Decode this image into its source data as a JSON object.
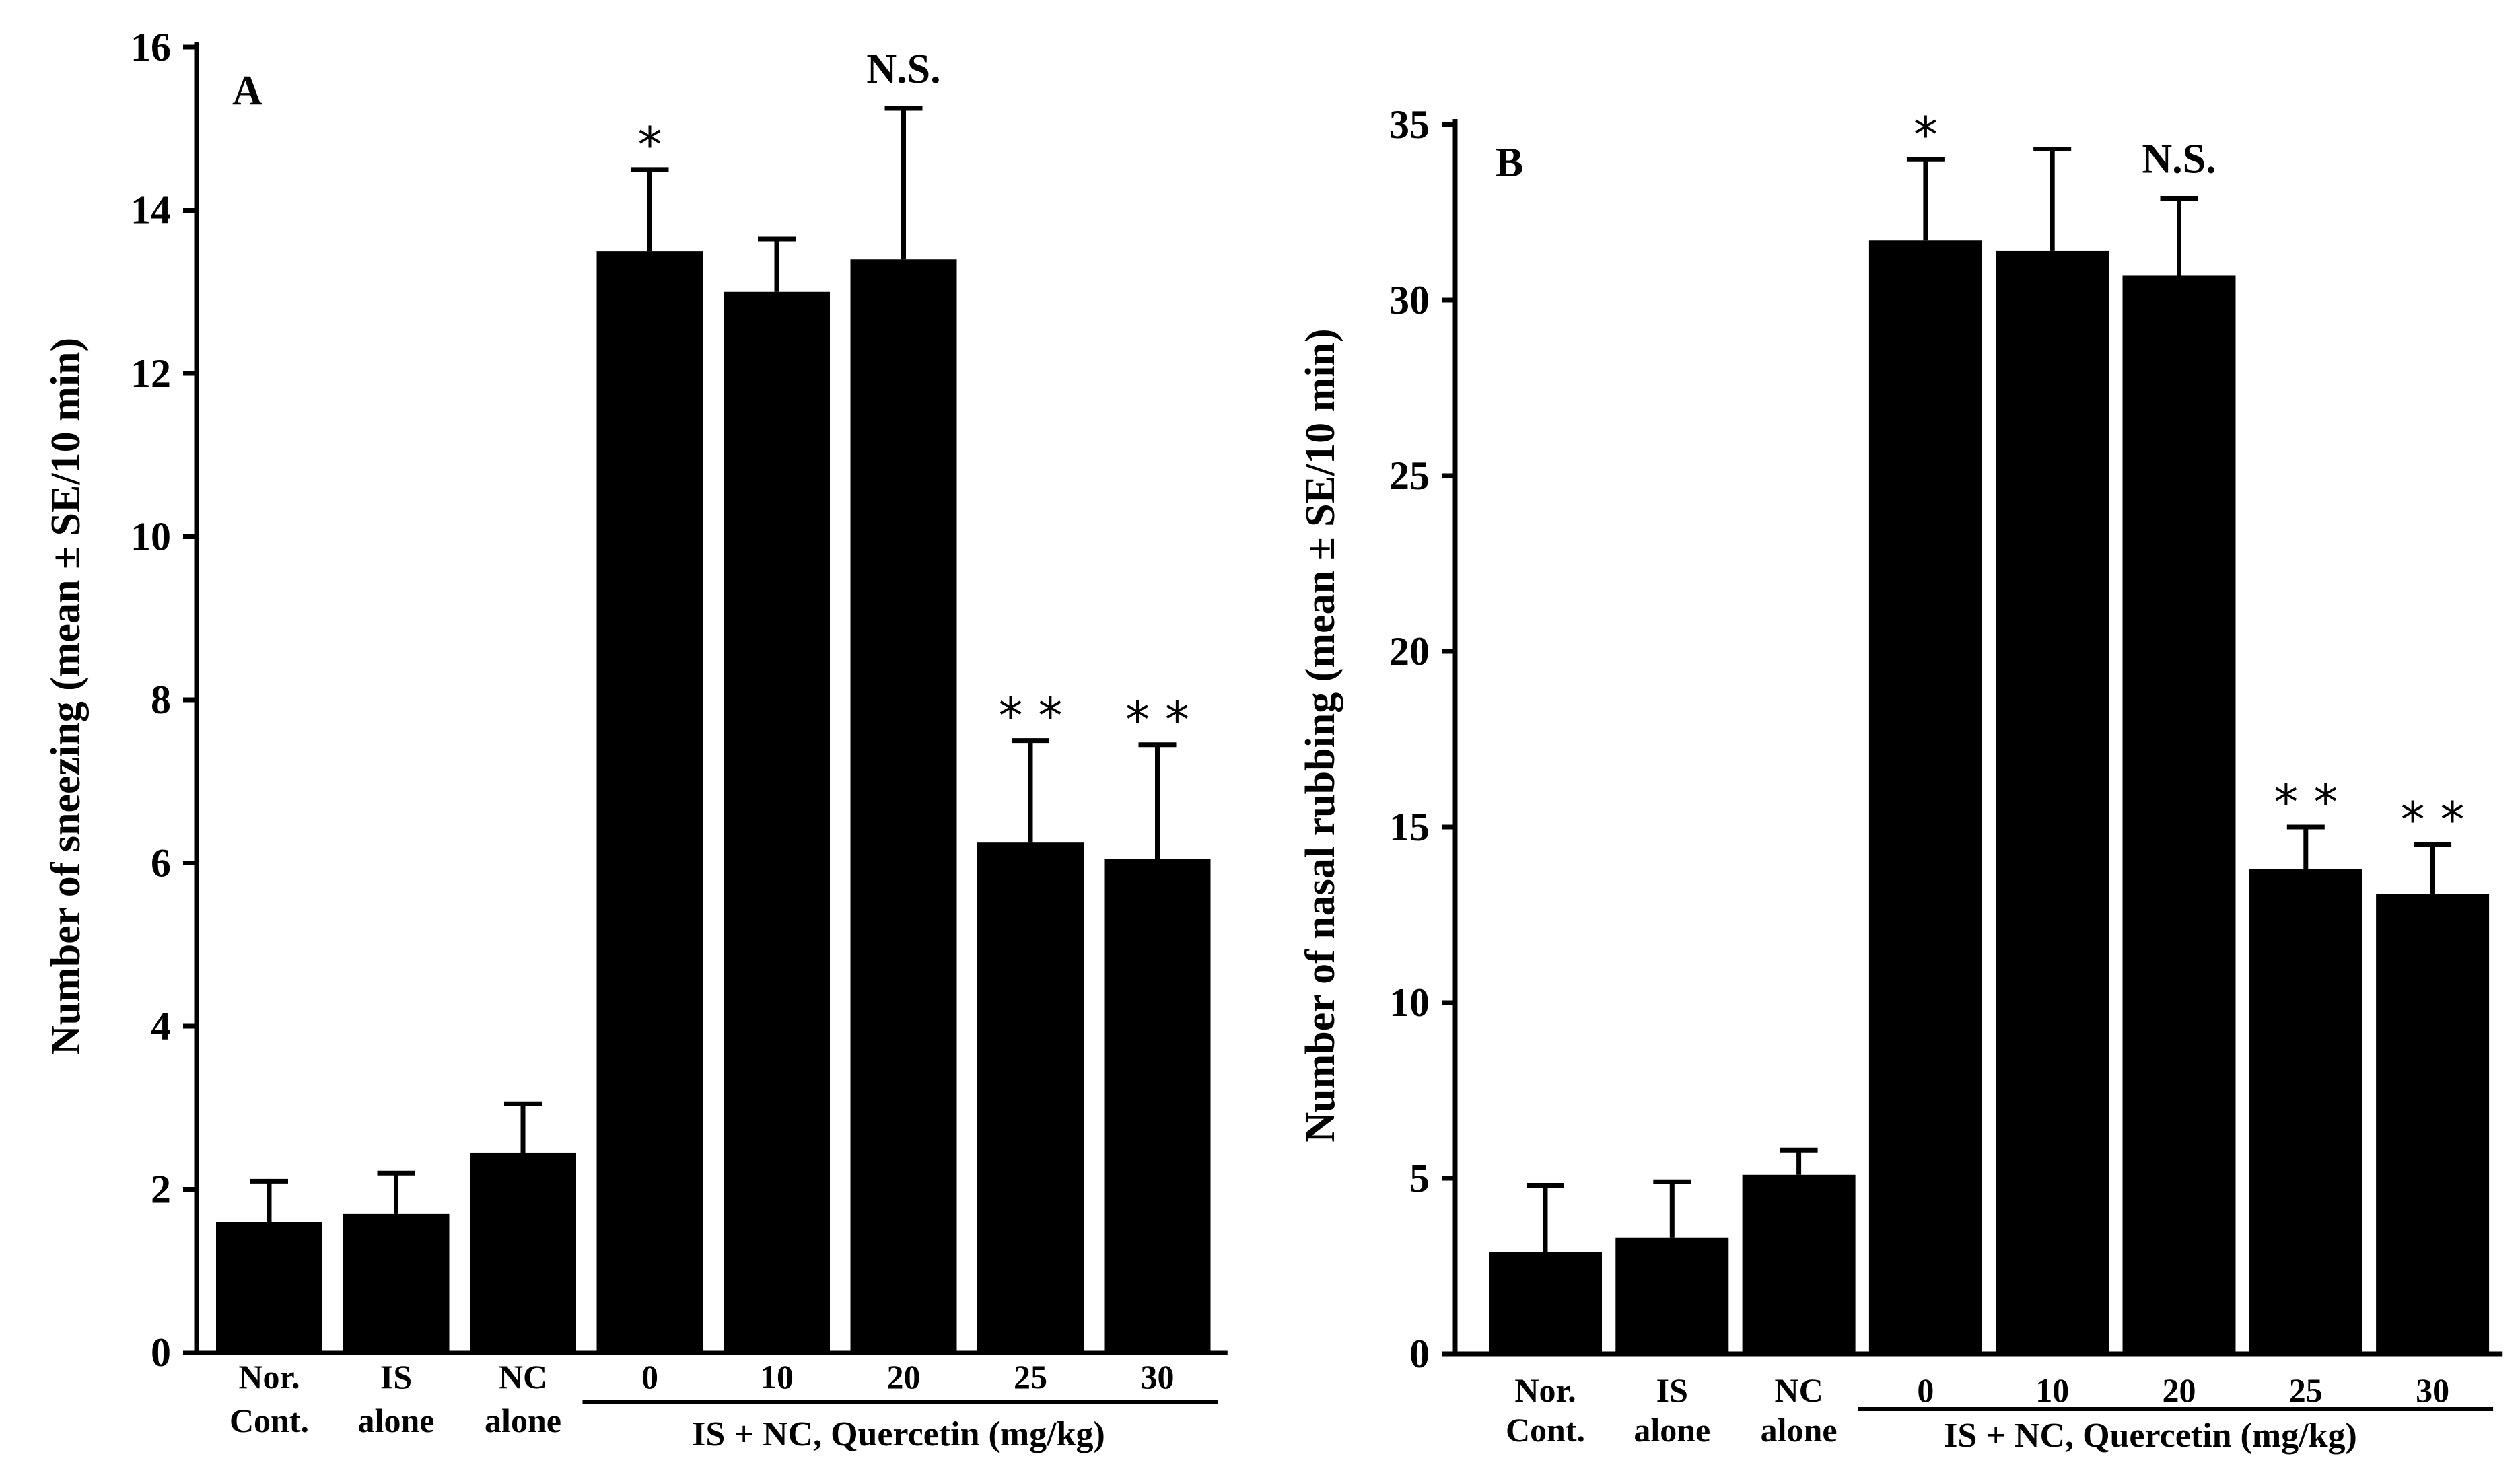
{
  "chart_data": [
    {
      "panel": "A",
      "type": "bar",
      "ylabel": "Number of sneezing (mean ± SE/10 min)",
      "ylim": [
        0,
        16
      ],
      "yticks": [
        0,
        2,
        4,
        6,
        8,
        10,
        12,
        14,
        16
      ],
      "categories": [
        {
          "line1": "Nor.",
          "line2": "Cont."
        },
        {
          "line1": "IS",
          "line2": "alone"
        },
        {
          "line1": "NC",
          "line2": "alone"
        },
        {
          "line1": "0",
          "line2": ""
        },
        {
          "line1": "10",
          "line2": ""
        },
        {
          "line1": "20",
          "line2": ""
        },
        {
          "line1": "25",
          "line2": ""
        },
        {
          "line1": "30",
          "line2": ""
        }
      ],
      "values": [
        1.6,
        1.7,
        2.45,
        13.5,
        13.0,
        13.4,
        6.25,
        6.05
      ],
      "errors": [
        0.5,
        0.5,
        0.6,
        1.0,
        0.65,
        1.85,
        1.25,
        1.4
      ],
      "annotations": [
        "",
        "",
        "",
        "*",
        "",
        "N.S.",
        "**",
        "**"
      ],
      "group_label": "IS + NC, Quercetin (mg/kg)",
      "group_range": [
        3,
        7
      ]
    },
    {
      "panel": "B",
      "type": "bar",
      "ylabel": "Number of nasal rubbing (mean ± SE/10 min)",
      "ylim": [
        0,
        35
      ],
      "yticks": [
        0,
        5,
        10,
        15,
        20,
        25,
        30,
        35
      ],
      "categories": [
        {
          "line1": "Nor.",
          "line2": "Cont."
        },
        {
          "line1": "IS",
          "line2": "alone"
        },
        {
          "line1": "NC",
          "line2": "alone"
        },
        {
          "line1": "0",
          "line2": ""
        },
        {
          "line1": "10",
          "line2": ""
        },
        {
          "line1": "20",
          "line2": ""
        },
        {
          "line1": "25",
          "line2": ""
        },
        {
          "line1": "30",
          "line2": ""
        }
      ],
      "values": [
        2.9,
        3.3,
        5.1,
        31.7,
        31.4,
        30.7,
        13.8,
        13.1
      ],
      "errors": [
        1.9,
        1.6,
        0.7,
        2.3,
        2.9,
        2.2,
        1.2,
        1.4
      ],
      "annotations": [
        "*",
        "",
        "N.S.",
        "",
        "",
        "",
        "**",
        "**"
      ],
      "annotation_anchor": [
        3,
        null,
        5,
        null,
        null,
        null,
        6,
        7
      ],
      "group_label": "IS + NC, Quercetin (mg/kg)",
      "group_range": [
        3,
        7
      ]
    }
  ]
}
